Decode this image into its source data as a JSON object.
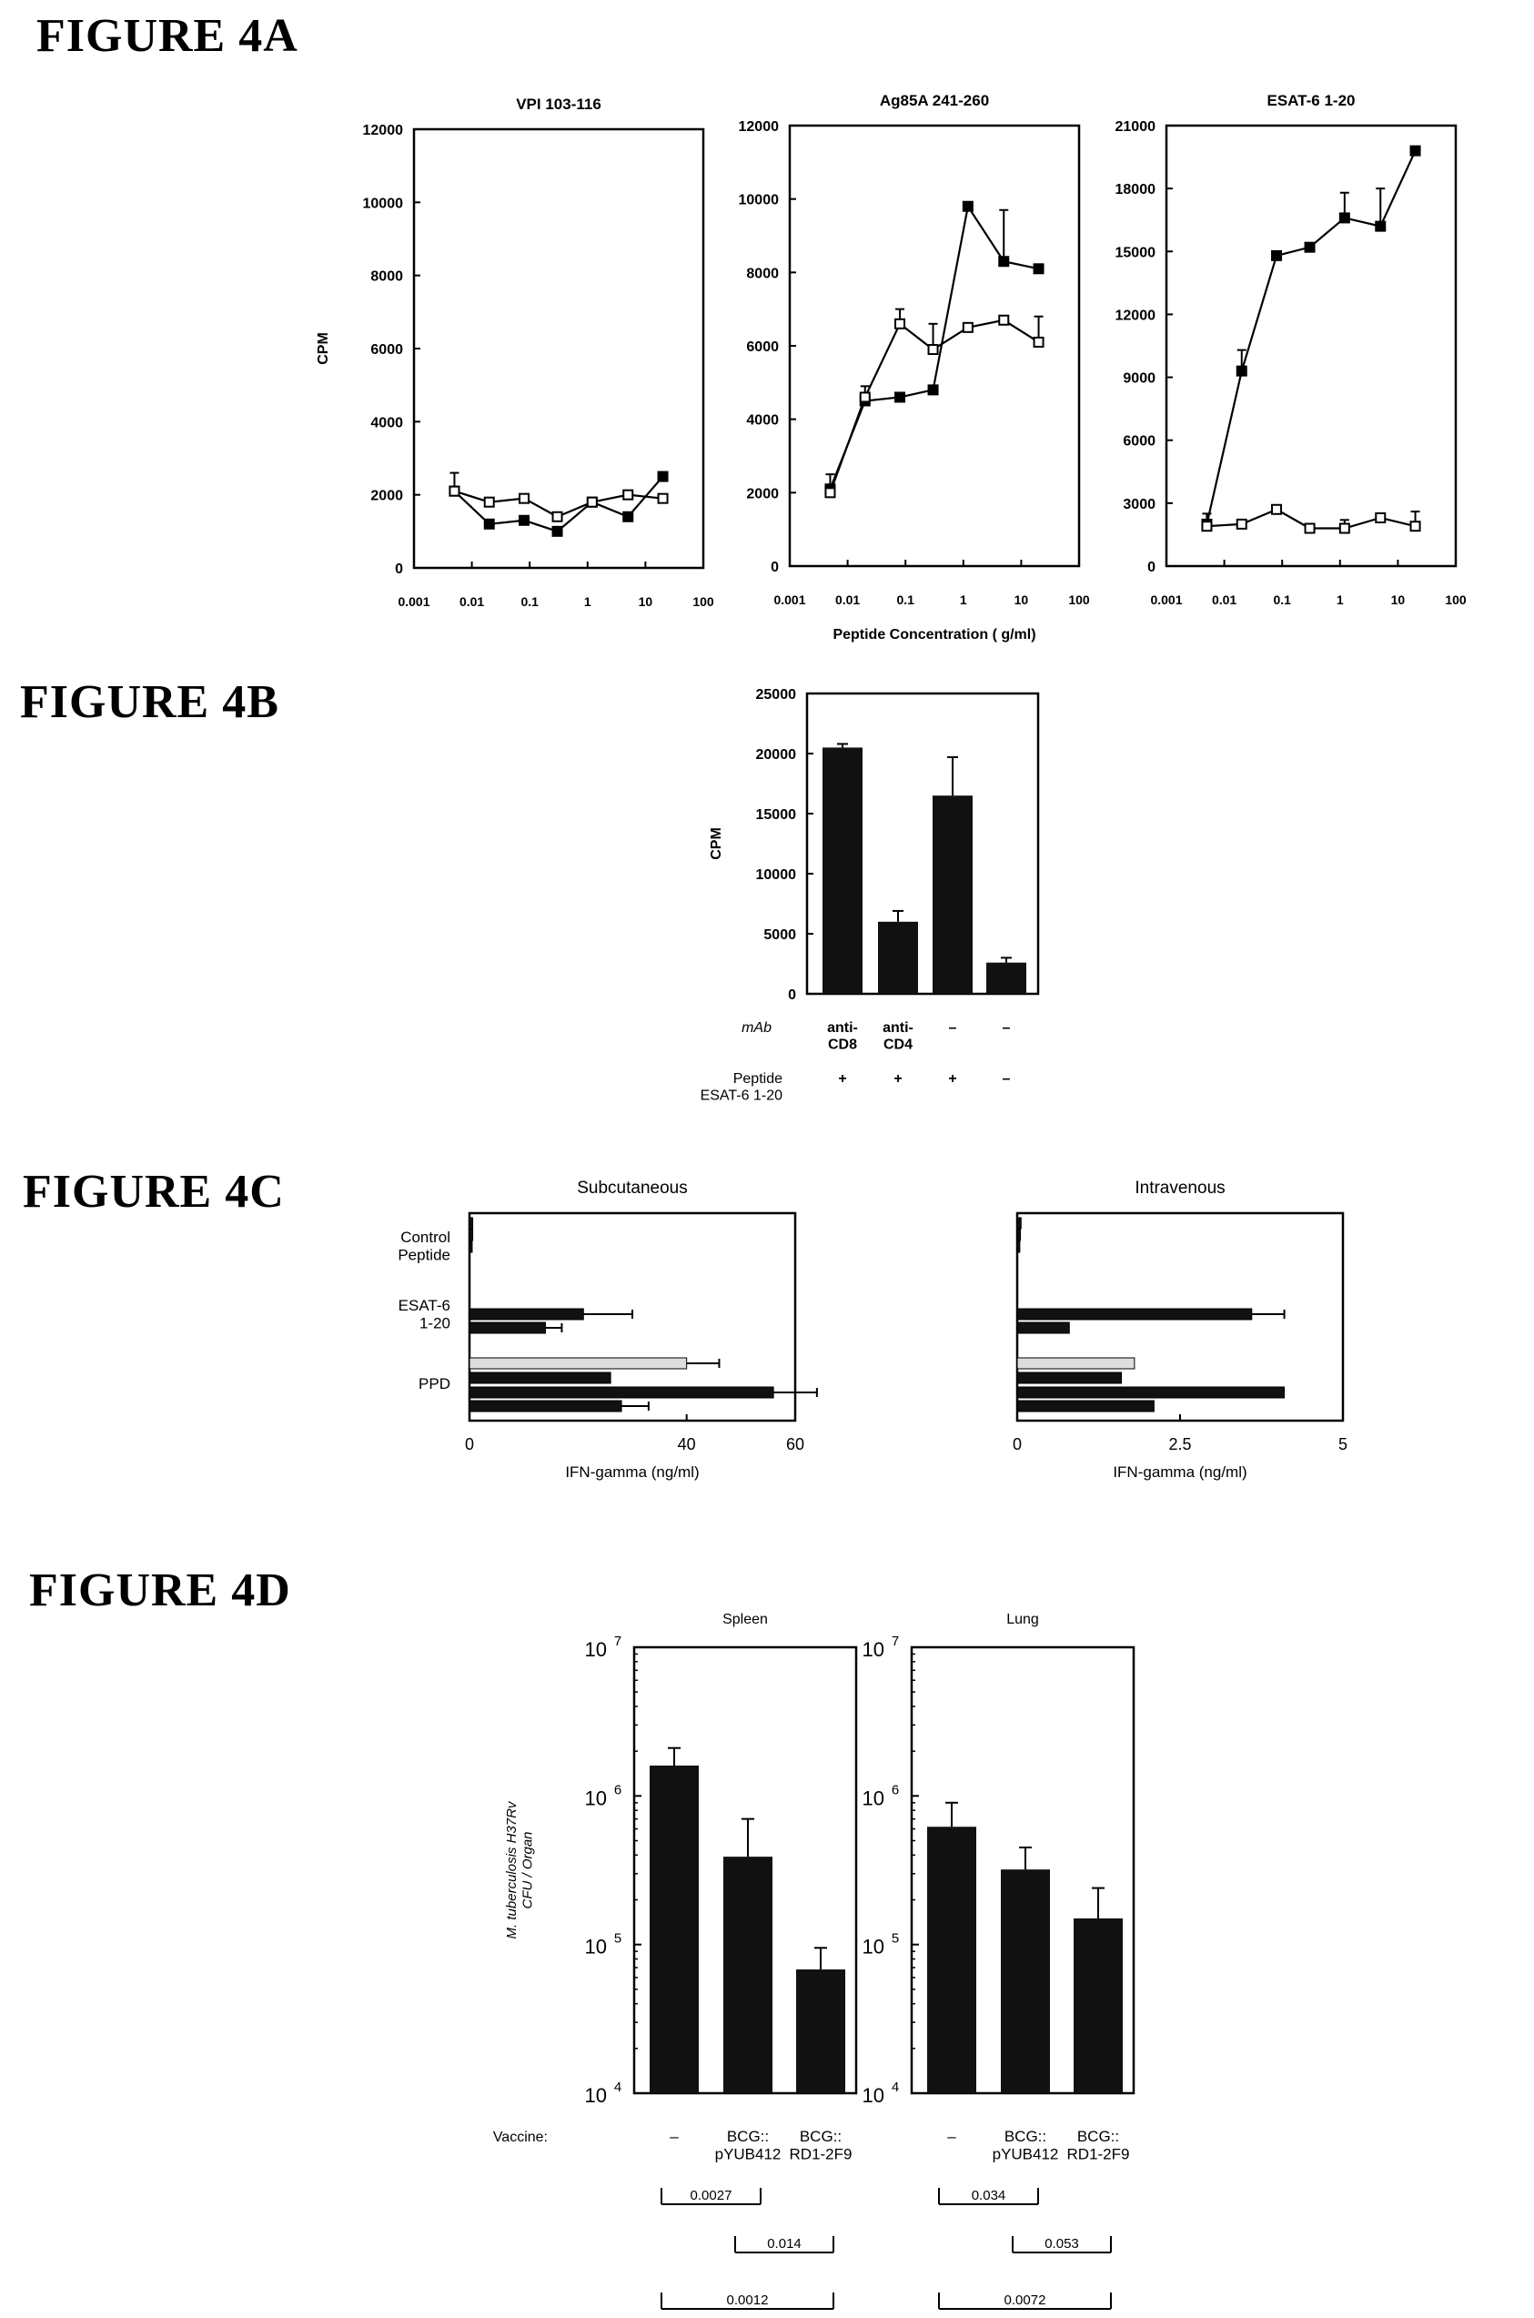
{
  "figure_labels": [
    "FIGURE 4A",
    "FIGURE 4B",
    "FIGURE 4C",
    "FIGURE 4D"
  ],
  "colors": {
    "ink": "#000000",
    "bar_dark": "#111111",
    "bar_light": "#dddddd",
    "background": "#ffffff"
  },
  "chart_data": [
    {
      "id": "4A-1",
      "type": "line",
      "title": "VPI 103-116",
      "xlabel": "",
      "ylabel": "CPM",
      "xscale": "log",
      "xlim": [
        0.001,
        100
      ],
      "ylim": [
        0,
        12000
      ],
      "xticks": [
        0.001,
        0.01,
        0.1,
        1,
        10,
        100
      ],
      "xtick_labels": [
        "0.001",
        "0.01",
        "0.1",
        "1",
        "10",
        "100"
      ],
      "yticks": [
        0,
        2000,
        4000,
        6000,
        8000,
        10000,
        12000
      ],
      "ytick_labels": [
        "0",
        "2000",
        "4000",
        "6000",
        "8000",
        "10000",
        "12000"
      ],
      "series": [
        {
          "marker": "filled-square",
          "x": [
            0.005,
            0.02,
            0.08,
            0.3,
            1.2,
            5,
            20
          ],
          "y": [
            2100,
            1200,
            1300,
            1000,
            1800,
            1400,
            2500
          ],
          "err": [
            500,
            0,
            0,
            0,
            0,
            0,
            0
          ]
        },
        {
          "marker": "open-square",
          "x": [
            0.005,
            0.02,
            0.08,
            0.3,
            1.2,
            5,
            20
          ],
          "y": [
            2100,
            1800,
            1900,
            1400,
            1800,
            2000,
            1900
          ],
          "err": [
            0,
            0,
            0,
            0,
            0,
            0,
            0
          ]
        }
      ]
    },
    {
      "id": "4A-2",
      "type": "line",
      "title": "Ag85A 241-260",
      "xlabel": "Peptide Concentration ( g/ml)",
      "ylabel": "",
      "xscale": "log",
      "xlim": [
        0.001,
        100
      ],
      "ylim": [
        0,
        12000
      ],
      "xticks": [
        0.001,
        0.01,
        0.1,
        1,
        10,
        100
      ],
      "xtick_labels": [
        "0.001",
        "0.01",
        "0.1",
        "1",
        "10",
        "100"
      ],
      "yticks": [
        0,
        2000,
        4000,
        6000,
        8000,
        10000,
        12000
      ],
      "ytick_labels": [
        "0",
        "2000",
        "4000",
        "6000",
        "8000",
        "10000",
        "12000"
      ],
      "series": [
        {
          "marker": "filled-square",
          "x": [
            0.005,
            0.02,
            0.08,
            0.3,
            1.2,
            5,
            20
          ],
          "y": [
            2100,
            4500,
            4600,
            4800,
            9800,
            8300,
            8100
          ],
          "err": [
            400,
            0,
            0,
            0,
            0,
            1400,
            0
          ]
        },
        {
          "marker": "open-square",
          "x": [
            0.005,
            0.02,
            0.08,
            0.3,
            1.2,
            5,
            20
          ],
          "y": [
            2000,
            4600,
            6600,
            5900,
            6500,
            6700,
            6100
          ],
          "err": [
            0,
            300,
            400,
            700,
            0,
            0,
            700
          ]
        }
      ]
    },
    {
      "id": "4A-3",
      "type": "line",
      "title": "ESAT-6 1-20",
      "xlabel": "",
      "ylabel": "",
      "xscale": "log",
      "xlim": [
        0.001,
        100
      ],
      "ylim": [
        0,
        21000
      ],
      "xticks": [
        0.001,
        0.01,
        0.1,
        1,
        10,
        100
      ],
      "xtick_labels": [
        "0.001",
        "0.01",
        "0.1",
        "1",
        "10",
        "100"
      ],
      "yticks": [
        0,
        3000,
        6000,
        9000,
        12000,
        15000,
        18000,
        21000
      ],
      "ytick_labels": [
        "0",
        "3000",
        "6000",
        "9000",
        "12000",
        "15000",
        "18000",
        "21000"
      ],
      "series": [
        {
          "marker": "filled-square",
          "x": [
            0.005,
            0.02,
            0.08,
            0.3,
            1.2,
            5,
            20
          ],
          "y": [
            2000,
            9300,
            14800,
            15200,
            16600,
            16200,
            19800
          ],
          "err": [
            500,
            1000,
            0,
            0,
            1200,
            1800,
            0
          ]
        },
        {
          "marker": "open-square",
          "x": [
            0.005,
            0.02,
            0.08,
            0.3,
            1.2,
            5,
            20
          ],
          "y": [
            1900,
            2000,
            2700,
            1800,
            1800,
            2300,
            1900
          ],
          "err": [
            0,
            0,
            0,
            0,
            400,
            0,
            700
          ]
        }
      ]
    },
    {
      "id": "4B",
      "type": "bar",
      "title": "",
      "xlabel": "",
      "ylabel": "CPM",
      "ylim": [
        0,
        25000
      ],
      "yticks": [
        0,
        5000,
        10000,
        15000,
        20000,
        25000
      ],
      "ytick_labels": [
        "0",
        "5000",
        "10000",
        "15000",
        "20000",
        "25000"
      ],
      "values": [
        20500,
        6000,
        16500,
        2600
      ],
      "err": [
        300,
        900,
        3200,
        400
      ],
      "row_labels": [
        {
          "label": "mAb",
          "cells": [
            "anti-\nCD8",
            "anti-\nCD4",
            "–",
            "–"
          ]
        },
        {
          "label": "Peptide\nESAT-6 1-20",
          "cells": [
            "+",
            "+",
            "+",
            "–"
          ]
        }
      ]
    },
    {
      "id": "4C-1",
      "type": "bar",
      "orientation": "horizontal",
      "title": "Subcutaneous",
      "xlabel": "IFN-gamma (ng/ml)",
      "ylabel": "",
      "xlim": [
        0,
        60
      ],
      "xticks": [
        0,
        40,
        60
      ],
      "xtick_labels": [
        "0",
        "40",
        "60"
      ],
      "categories": [
        "Control\nPeptide",
        "ESAT-6\n1-20",
        "PPD"
      ],
      "bars": [
        {
          "group": 0,
          "value": 0.6,
          "err": 0,
          "shade": "dark"
        },
        {
          "group": 0,
          "value": 0.6,
          "err": 0,
          "shade": "dark"
        },
        {
          "group": 0,
          "value": 0.5,
          "err": 0,
          "shade": "dark"
        },
        {
          "group": 1,
          "value": 21,
          "err": 9,
          "shade": "dark"
        },
        {
          "group": 1,
          "value": 14,
          "err": 3,
          "shade": "dark"
        },
        {
          "group": 2,
          "value": 40,
          "err": 6,
          "shade": "light"
        },
        {
          "group": 2,
          "value": 26,
          "err": 0,
          "shade": "dark"
        },
        {
          "group": 2,
          "value": 56,
          "err": 8,
          "shade": "dark"
        },
        {
          "group": 2,
          "value": 28,
          "err": 5,
          "shade": "dark"
        }
      ]
    },
    {
      "id": "4C-2",
      "type": "bar",
      "orientation": "horizontal",
      "title": "Intravenous",
      "xlabel": "IFN-gamma (ng/ml)",
      "ylabel": "",
      "xlim": [
        0,
        5
      ],
      "xticks": [
        0,
        2.5,
        5
      ],
      "xtick_labels": [
        "0",
        "2.5",
        "5"
      ],
      "categories": [
        "",
        "",
        ""
      ],
      "bars": [
        {
          "group": 0,
          "value": 0.06,
          "err": 0,
          "shade": "dark"
        },
        {
          "group": 0,
          "value": 0.05,
          "err": 0,
          "shade": "dark"
        },
        {
          "group": 0,
          "value": 0.04,
          "err": 0,
          "shade": "dark"
        },
        {
          "group": 1,
          "value": 3.6,
          "err": 0.5,
          "shade": "dark"
        },
        {
          "group": 1,
          "value": 0.8,
          "err": 0,
          "shade": "dark"
        },
        {
          "group": 2,
          "value": 1.8,
          "err": 0,
          "shade": "light"
        },
        {
          "group": 2,
          "value": 1.6,
          "err": 0,
          "shade": "dark"
        },
        {
          "group": 2,
          "value": 4.1,
          "err": 0,
          "shade": "dark"
        },
        {
          "group": 2,
          "value": 2.1,
          "err": 0,
          "shade": "dark"
        }
      ]
    },
    {
      "id": "4D-1",
      "type": "bar",
      "title": "Spleen",
      "xlabel": "",
      "ylabel": "M. tuberculosis H37Rv\nCFU / Organ",
      "yscale": "log",
      "ylim": [
        10000,
        10000000
      ],
      "ytick_labels": [
        {
          "base": "10",
          "exp": "4"
        },
        {
          "base": "10",
          "exp": "5"
        },
        {
          "base": "10",
          "exp": "6"
        },
        {
          "base": "10",
          "exp": "7"
        }
      ],
      "categories": [
        "–",
        "BCG::\npYUB412",
        "BCG::\nRD1-2F9"
      ],
      "x_caption": "Vaccine:",
      "values": [
        1600000,
        390000,
        68000
      ],
      "err_upper": [
        2100000,
        700000,
        95000
      ],
      "p_values": [
        {
          "from": 0,
          "to": 1,
          "label": "0.0027"
        },
        {
          "from": 1,
          "to": 2,
          "label": "0.014"
        },
        {
          "from": 0,
          "to": 2,
          "label": "0.0012"
        }
      ]
    },
    {
      "id": "4D-2",
      "type": "bar",
      "title": "Lung",
      "xlabel": "",
      "ylabel": "",
      "yscale": "log",
      "ylim": [
        10000,
        10000000
      ],
      "ytick_labels": [
        {
          "base": "10",
          "exp": "4"
        },
        {
          "base": "10",
          "exp": "5"
        },
        {
          "base": "10",
          "exp": "6"
        },
        {
          "base": "10",
          "exp": "7"
        }
      ],
      "categories": [
        "–",
        "BCG::\npYUB412",
        "BCG::\nRD1-2F9"
      ],
      "values": [
        620000,
        320000,
        150000
      ],
      "err_upper": [
        900000,
        450000,
        240000
      ],
      "p_values": [
        {
          "from": 0,
          "to": 1,
          "label": "0.034"
        },
        {
          "from": 1,
          "to": 2,
          "label": "0.053"
        },
        {
          "from": 0,
          "to": 2,
          "label": "0.0072"
        }
      ]
    }
  ]
}
